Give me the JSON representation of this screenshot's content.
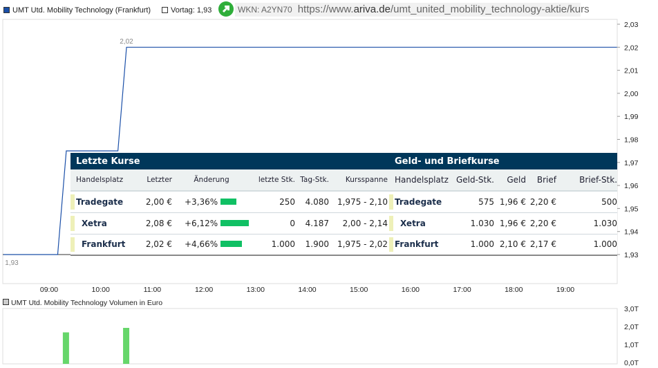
{
  "header": {
    "series_label": "UMT Utd. Mobility Technology (Frankfurt)",
    "vortag_label": "Vortag: 1,93",
    "wkn": "WKN: A2YN70",
    "url_prefix": "https://www.",
    "url_domain": "ariva.de",
    "url_path": "/umt_united_mobility_technology-aktie/kurs",
    "series_color": "#1a4fa8",
    "arrow_icon": "arrow-up-right-icon"
  },
  "chart_data": [
    {
      "type": "line",
      "series": [
        {
          "name": "UMT Utd. Mobility Technology (Frankfurt)",
          "color": "#1a4fa8",
          "points": [
            [
              "08:07",
              1.93
            ],
            [
              "09:10",
              1.93
            ],
            [
              "09:20",
              1.975
            ],
            [
              "10:20",
              1.975
            ],
            [
              "10:30",
              2.02
            ],
            [
              "20:00",
              2.02
            ]
          ]
        }
      ],
      "reference_line": {
        "label": "Vortag",
        "value": 1.93
      },
      "annotations": [
        "2,02",
        "1,93"
      ],
      "x_ticks": [
        "09:00",
        "10:00",
        "11:00",
        "12:00",
        "13:00",
        "14:00",
        "15:00",
        "16:00",
        "17:00",
        "18:00",
        "19:00"
      ],
      "y_ticks": [
        "1,93",
        "1,94",
        "1,95",
        "1,96",
        "1,97",
        "1,98",
        "1,99",
        "2,00",
        "2,01",
        "2,02",
        "2,03"
      ],
      "ylim": [
        1.93,
        2.03
      ]
    },
    {
      "type": "bar",
      "title": "UMT Utd. Mobility Technology Volumen in Euro",
      "x": [
        "09:20",
        "10:30"
      ],
      "values": [
        1.75,
        2.0
      ],
      "unit": "T",
      "color": "#66d66a",
      "y_ticks": [
        "0,0T",
        "1,0T",
        "2,0T",
        "3,0T"
      ],
      "ylim": [
        0,
        3
      ]
    }
  ],
  "letzte_kurse": {
    "title": "Letzte Kurse",
    "columns": [
      "Handelsplatz",
      "Letzter",
      "Änderung",
      "letzte Stk.",
      "Tag-Stk.",
      "Kursspanne"
    ],
    "rows": [
      {
        "name": "Tradegate",
        "letzter": "2,00 €",
        "aenderung": "+3,36%",
        "pct": 3.36,
        "letzte_stk": "250",
        "tag_stk": "4.080",
        "spanne": "1,975 - 2,10"
      },
      {
        "name": "Xetra",
        "letzter": "2,08 €",
        "aenderung": "+6,12%",
        "pct": 6.12,
        "letzte_stk": "0",
        "tag_stk": "4.187",
        "spanne": "2,00 - 2,14"
      },
      {
        "name": "Frankfurt",
        "letzter": "2,02 €",
        "aenderung": "+4,66%",
        "pct": 4.66,
        "letzte_stk": "1.000",
        "tag_stk": "1.900",
        "spanne": "1,975 - 2,02"
      }
    ]
  },
  "geld_brief": {
    "title": "Geld- und Briefkurse",
    "columns": [
      "Handelsplatz",
      "Geld-Stk.",
      "Geld",
      "Brief",
      "Brief-Stk."
    ],
    "rows": [
      {
        "name": "Tradegate",
        "geld_stk": "575",
        "geld": "1,96 €",
        "brief": "2,20 €",
        "brief_stk": "500"
      },
      {
        "name": "Xetra",
        "geld_stk": "1.030",
        "geld": "1,96 €",
        "brief": "2,20 €",
        "brief_stk": "1.030"
      },
      {
        "name": "Frankfurt",
        "geld_stk": "1.000",
        "geld": "2,10 €",
        "brief": "2,17 €",
        "brief_stk": "1.000"
      }
    ]
  }
}
